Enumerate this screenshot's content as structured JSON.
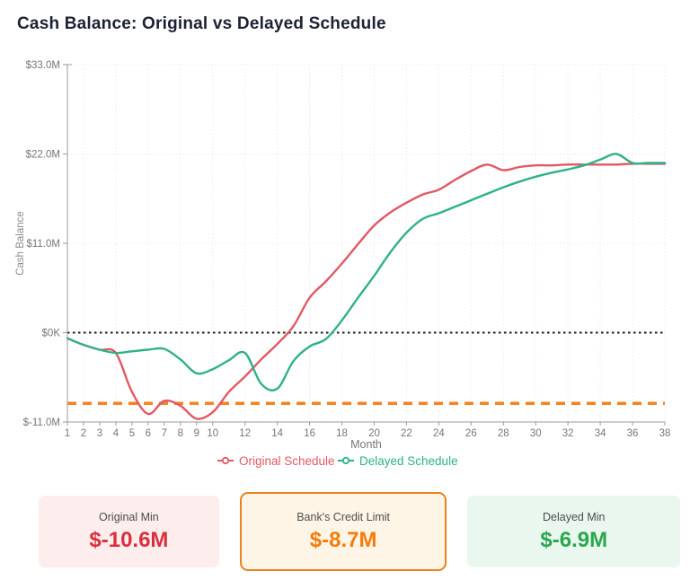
{
  "title": "Cash Balance: Original vs Delayed Schedule",
  "chart_data": {
    "type": "line",
    "title": "Cash Balance: Original vs Delayed Schedule",
    "xlabel": "Month",
    "ylabel": "Cash Balance",
    "xlim": [
      1,
      38
    ],
    "ylim": [
      -11,
      33
    ],
    "grid": true,
    "legend_position": "bottom",
    "x_ticks": [
      1,
      2,
      3,
      4,
      5,
      6,
      7,
      8,
      9,
      10,
      12,
      14,
      16,
      18,
      20,
      22,
      24,
      26,
      28,
      30,
      32,
      34,
      36,
      38
    ],
    "y_ticks": [
      {
        "value": 33,
        "label": "$33.0M"
      },
      {
        "value": 22,
        "label": "$22.0M"
      },
      {
        "value": 11,
        "label": "$11.0M"
      },
      {
        "value": 0,
        "label": "$0K"
      },
      {
        "value": -11,
        "label": "$-11.0M"
      }
    ],
    "x": [
      1,
      2,
      3,
      4,
      5,
      6,
      7,
      8,
      9,
      10,
      11,
      12,
      13,
      14,
      15,
      16,
      17,
      18,
      19,
      20,
      21,
      22,
      23,
      24,
      25,
      26,
      27,
      28,
      29,
      30,
      31,
      32,
      33,
      34,
      35,
      36,
      37,
      38
    ],
    "series": [
      {
        "name": "Original Schedule",
        "color": "#e25863",
        "values": [
          -0.7,
          -1.5,
          -2.1,
          -2.5,
          -7.3,
          -10.0,
          -8.4,
          -9.0,
          -10.6,
          -9.8,
          -7.3,
          -5.4,
          -3.3,
          -1.4,
          0.8,
          4.3,
          6.3,
          8.5,
          10.9,
          13.2,
          14.8,
          16.0,
          17.0,
          17.6,
          18.8,
          19.9,
          20.7,
          20.0,
          20.4,
          20.6,
          20.6,
          20.7,
          20.7,
          20.7,
          20.7,
          20.8,
          20.8,
          20.8
        ]
      },
      {
        "name": "Delayed Schedule",
        "color": "#2eb286",
        "values": [
          -0.7,
          -1.5,
          -2.1,
          -2.5,
          -2.3,
          -2.1,
          -2.0,
          -3.3,
          -5.0,
          -4.5,
          -3.4,
          -2.5,
          -6.3,
          -6.9,
          -3.5,
          -1.7,
          -0.8,
          1.5,
          4.3,
          7.0,
          9.9,
          12.3,
          14.0,
          14.7,
          15.5,
          16.3,
          17.1,
          17.9,
          18.6,
          19.2,
          19.7,
          20.1,
          20.6,
          21.3,
          22.0,
          20.9,
          20.9,
          20.9
        ]
      }
    ],
    "reference_lines": [
      {
        "name": "zero-line",
        "value": 0,
        "color": "#1a1a1a",
        "style": "dotted"
      },
      {
        "name": "credit-limit-line",
        "value": -8.7,
        "color": "#f68320",
        "style": "dashed"
      }
    ]
  },
  "cards": [
    {
      "label": "Original Min",
      "value": "$-10.6M"
    },
    {
      "label": "Bank's Credit Limit",
      "value": "$-8.7M"
    },
    {
      "label": "Delayed Min",
      "value": "$-6.9M"
    }
  ],
  "colors": {
    "original": "#e25863",
    "delayed": "#2eb286",
    "credit_limit": "#f68320",
    "zero_line": "#1a1a1a",
    "original_min_value": "#d92f3d",
    "credit_limit_value": "#f47c0c",
    "delayed_min_value": "#2aa64c"
  }
}
